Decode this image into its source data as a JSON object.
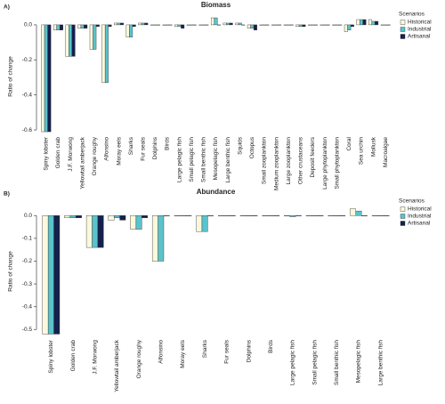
{
  "chart_data": [
    {
      "type": "bar",
      "label": "A)",
      "title": "Biomass",
      "y_label": "Ratio of change",
      "legend_title": "Scenarios",
      "categories": [
        "Spiny lobster",
        "Golden crab",
        "J.F. Morwong",
        "Yellowtail amberjack",
        "Orange roughy",
        "Alfonsino",
        "Moray eels",
        "Sharks",
        "Fur seals",
        "Dolphins",
        "Birds",
        "Large pelagic fish",
        "Small pelagic fish",
        "Small benthic fish",
        "Mesopelagic fish",
        "Large benthic fish",
        "Squids",
        "Octopus",
        "Small zooplankton",
        "Medium zooplankton",
        "Large zooplankton",
        "Other crustaceans",
        "Deposit feeders",
        "Large phytoplankton",
        "Small phytoplankton",
        "Coral",
        "Sea urchin",
        "Mollusk",
        "Macroalgae"
      ],
      "series": [
        {
          "name": "Historical",
          "color": "#fbf8dc",
          "values": [
            -0.61,
            -0.03,
            -0.18,
            -0.02,
            -0.14,
            -0.33,
            0.01,
            -0.07,
            0.01,
            0,
            0,
            -0.01,
            0,
            0,
            0.04,
            0.01,
            0.01,
            -0.02,
            0,
            0,
            0,
            -0.01,
            0,
            0,
            0,
            -0.04,
            0.03,
            0.03,
            0
          ]
        },
        {
          "name": "Industrial",
          "color": "#5ac3cc",
          "values": [
            -0.61,
            -0.03,
            -0.18,
            -0.02,
            -0.14,
            -0.33,
            0.01,
            -0.07,
            0.01,
            0,
            0,
            -0.01,
            0,
            0,
            0.04,
            0.01,
            0.01,
            -0.02,
            0,
            0,
            0,
            -0.01,
            0,
            0,
            0,
            -0.03,
            0.03,
            0.02,
            0
          ]
        },
        {
          "name": "Artisanal",
          "color": "#15204e",
          "values": [
            -0.61,
            -0.03,
            -0.18,
            -0.02,
            -0.01,
            -0.01,
            0.01,
            -0.01,
            0.01,
            0,
            0,
            -0.02,
            0,
            0,
            0,
            0.01,
            0,
            -0.03,
            0,
            0,
            0,
            -0.01,
            0,
            0,
            0,
            -0.01,
            0.03,
            0.02,
            0
          ]
        }
      ],
      "ylim": [
        -0.62,
        0.03
      ],
      "yticks": [
        {
          "value": 0,
          "label": "0.0"
        },
        -0.2,
        -0.4,
        -0.6
      ]
    },
    {
      "type": "bar",
      "label": "B)",
      "title": "Abundance",
      "y_label": "Ratio of change",
      "legend_title": "Scenarios",
      "categories": [
        "Spiny lobster",
        "Golden crab",
        "J.F. Morwong",
        "Yellowtail amberjack",
        "Orange roughy",
        "Alfonsino",
        "Moray eels",
        "Sharks",
        "Fur seals",
        "Dolphins",
        "Birds",
        "Large pelagic fish",
        "Small pelagic fish",
        "Small benthic fish",
        "Mesopelagic fish",
        "Large benthic fish"
      ],
      "series": [
        {
          "name": "Historical",
          "color": "#fbf8dc",
          "values": [
            -0.52,
            -0.01,
            -0.14,
            -0.02,
            -0.06,
            -0.2,
            0,
            -0.07,
            0,
            0,
            0,
            0,
            0,
            0,
            0.03,
            0
          ]
        },
        {
          "name": "Industrial",
          "color": "#5ac3cc",
          "values": [
            -0.52,
            -0.01,
            -0.14,
            -0.01,
            -0.06,
            -0.2,
            0,
            -0.07,
            0,
            0,
            0,
            -0.005,
            0,
            0,
            0.02,
            0
          ]
        },
        {
          "name": "Artisanal",
          "color": "#15204e",
          "values": [
            -0.52,
            -0.01,
            -0.14,
            -0.02,
            -0.01,
            0,
            0,
            0,
            0,
            0,
            0,
            0,
            0,
            0,
            0,
            0
          ]
        }
      ],
      "ylim": [
        -0.53,
        0.04
      ],
      "yticks": [
        {
          "value": 0,
          "label": "0.0"
        },
        -0.1,
        -0.2,
        -0.3,
        -0.4,
        -0.5
      ]
    }
  ]
}
